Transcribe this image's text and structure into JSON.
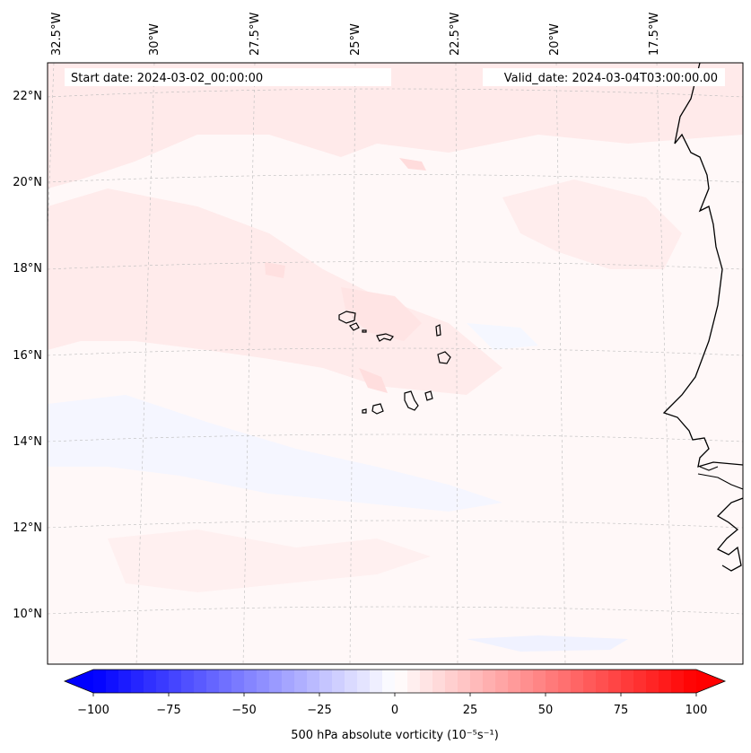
{
  "header": {
    "start_date": "Start date: 2024-03-02_00:00:00",
    "valid_date": "Valid_date: 2024-03-04T03:00:00.00"
  },
  "map": {
    "longitude_labels": [
      "32.5°W",
      "30°W",
      "27.5°W",
      "25°W",
      "22.5°W",
      "20°W",
      "17.5°W"
    ],
    "latitude_labels": [
      "22°N",
      "20°N",
      "18°N",
      "16°N",
      "14°N",
      "12°N",
      "10°N"
    ],
    "field_colors": {
      "background": "#fff8f8",
      "pink_light": "#ffe7e7",
      "pink_mid": "#ffd9d9",
      "blue_light": "#f3f5ff",
      "coast": "#000000"
    }
  },
  "colorbar": {
    "label": "500 hPa absolute vorticity (10⁻⁵s⁻¹)",
    "ticks": [
      "−100",
      "−75",
      "−50",
      "−25",
      "0",
      "25",
      "50",
      "75",
      "100"
    ],
    "min": -100,
    "max": 100,
    "levels": 48,
    "neg_color": "#0000ff",
    "pos_color": "#ff0000"
  }
}
